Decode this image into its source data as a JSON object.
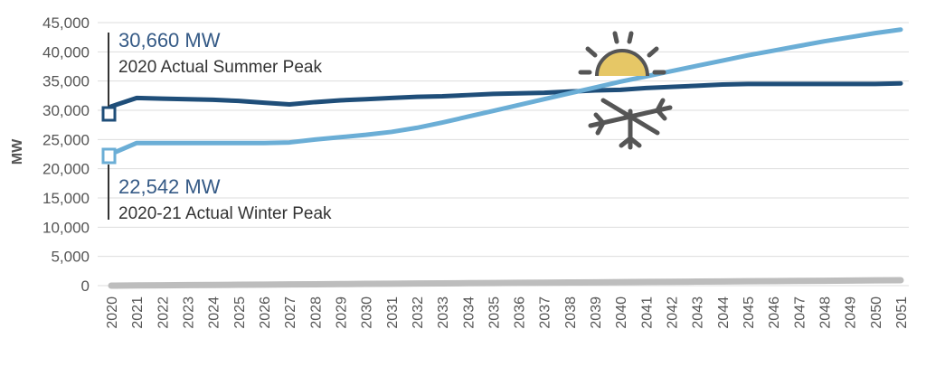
{
  "chart_data": {
    "type": "line",
    "title": "",
    "ylabel": "MW",
    "xlabel": "",
    "ylim": [
      0,
      45000
    ],
    "yticks": [
      0,
      5000,
      10000,
      15000,
      20000,
      25000,
      30000,
      35000,
      40000,
      45000
    ],
    "ytick_labels": [
      "0",
      "5,000",
      "10,000",
      "15,000",
      "20,000",
      "25,000",
      "30,000",
      "35,000",
      "40,000",
      "45,000"
    ],
    "grid": true,
    "categories": [
      "2020",
      "2021",
      "2022",
      "2023",
      "2024",
      "2025",
      "2026",
      "2027",
      "2028",
      "2029",
      "2030",
      "2031",
      "2032",
      "2033",
      "2034",
      "2035",
      "2036",
      "2037",
      "2038",
      "2039",
      "2040",
      "2041",
      "2042",
      "2043",
      "2044",
      "2045",
      "2046",
      "2047",
      "2048",
      "2049",
      "2050",
      "2051"
    ],
    "series": [
      {
        "color": "#1f4e79",
        "values": [
          30660,
          32100,
          32000,
          31900,
          31800,
          31600,
          31300,
          31000,
          31400,
          31700,
          31900,
          32100,
          32300,
          32400,
          32600,
          32800,
          32900,
          33000,
          33200,
          33400,
          33500,
          33800,
          34000,
          34200,
          34400,
          34500,
          34500,
          34500,
          34500,
          34500,
          34500,
          34600
        ]
      },
      {
        "color": "#6baed6",
        "values": [
          22542,
          24400,
          24400,
          24400,
          24400,
          24400,
          24400,
          24500,
          25000,
          25400,
          25800,
          26300,
          27000,
          27900,
          28900,
          29900,
          30900,
          31900,
          32900,
          33900,
          34900,
          35800,
          36700,
          37600,
          38500,
          39400,
          40200,
          41000,
          41800,
          42500,
          43200,
          43800
        ]
      },
      {
        "color": "#bdbdbd",
        "values": [
          0,
          30,
          60,
          90,
          120,
          150,
          180,
          210,
          240,
          270,
          300,
          330,
          360,
          390,
          420,
          450,
          480,
          510,
          540,
          570,
          600,
          630,
          660,
          690,
          720,
          750,
          780,
          810,
          840,
          870,
          900,
          930
        ]
      }
    ],
    "annotations": [
      {
        "value": "30,660 MW",
        "label": "2020 Actual Summer Peak",
        "color": "#355a86"
      },
      {
        "value": "22,542 MW",
        "label": "2020-21 Actual Winter Peak",
        "color": "#355a86"
      }
    ],
    "icons": [
      "sun-icon",
      "snowflake-icon"
    ]
  }
}
